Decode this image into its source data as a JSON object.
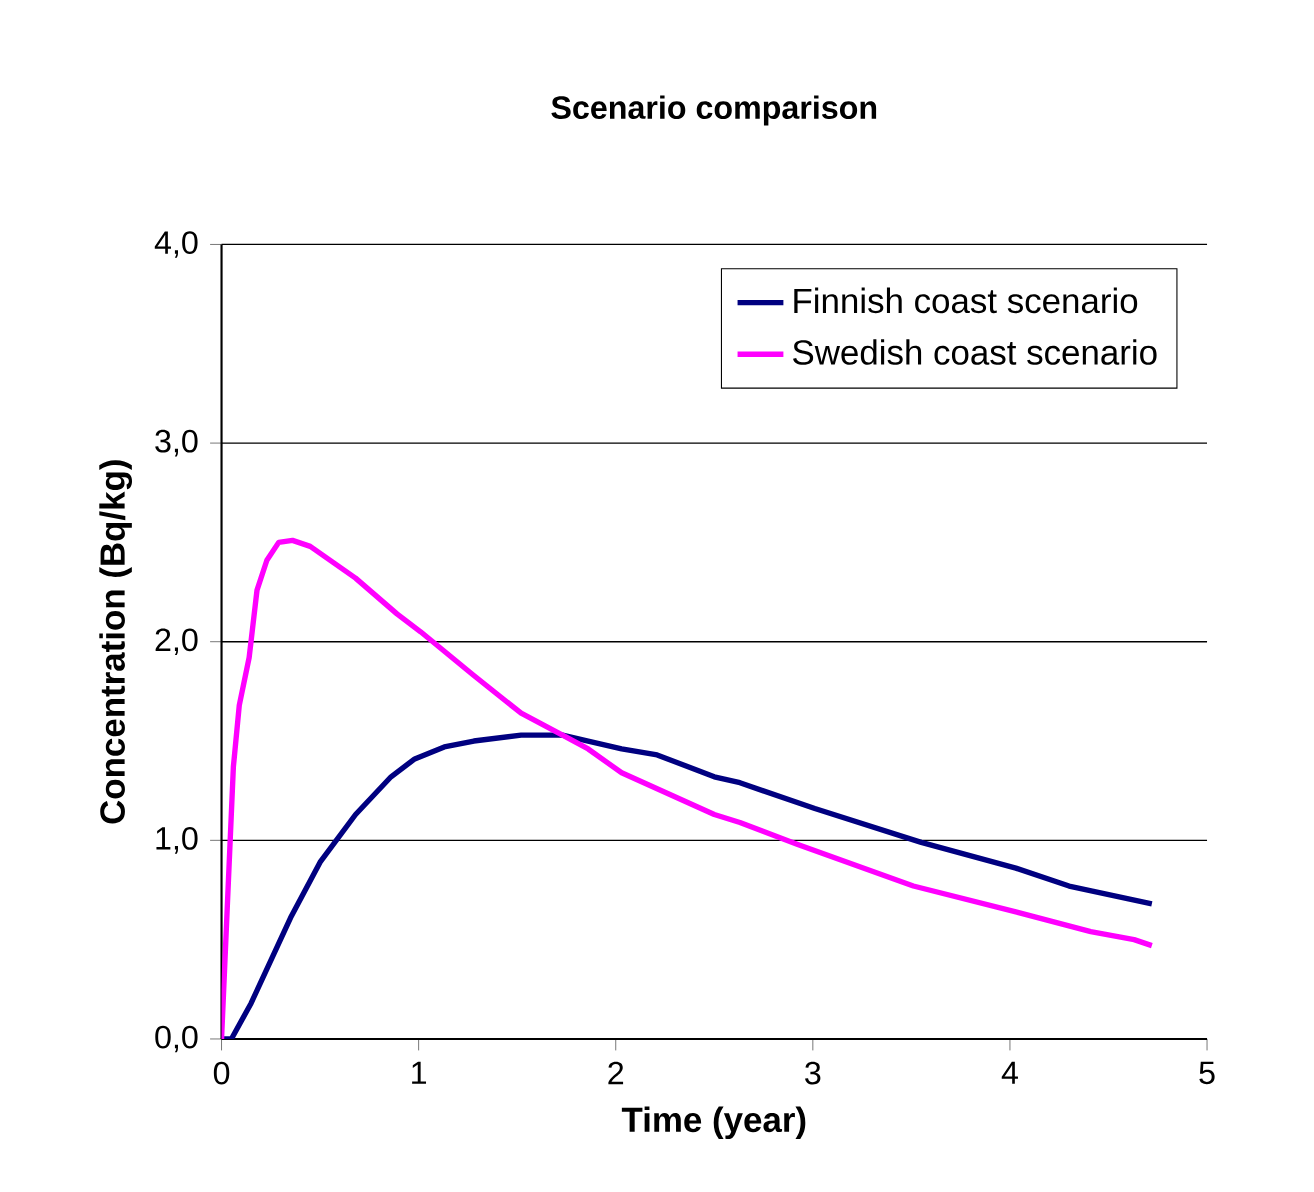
{
  "chart_data": {
    "type": "line",
    "title": "Scenario comparison",
    "xlabel": "Time (year)",
    "ylabel": "Concentration (Bq/kg)",
    "xlim": [
      0,
      5
    ],
    "xticks": [
      0,
      1,
      2,
      3,
      4,
      5
    ],
    "ylim": [
      0,
      4
    ],
    "yticks": [
      {
        "value": 0,
        "label": "0,0"
      },
      {
        "value": 1,
        "label": "1,0"
      },
      {
        "value": 2,
        "label": "2,0"
      },
      {
        "value": 3,
        "label": "3,0"
      },
      {
        "value": 4,
        "label": "4,0"
      }
    ],
    "grid": "y",
    "legend": "top right",
    "series": [
      {
        "name": "Finnish coast scenario",
        "color": "#000080",
        "x": [
          0.0,
          0.05,
          0.15,
          0.35,
          0.5,
          0.68,
          0.86,
          0.98,
          1.13,
          1.28,
          1.52,
          1.73,
          1.86,
          2.03,
          2.21,
          2.5,
          2.63,
          3.01,
          3.55,
          4.03,
          4.3,
          4.72
        ],
        "values": [
          0,
          0,
          0.18,
          0.61,
          0.89,
          1.13,
          1.32,
          1.41,
          1.47,
          1.5,
          1.53,
          1.53,
          1.5,
          1.46,
          1.43,
          1.32,
          1.29,
          1.16,
          0.99,
          0.86,
          0.77,
          0.68
        ]
      },
      {
        "name": "Swedish coast scenario",
        "color": "#ff00ff",
        "x": [
          0.0,
          0.06,
          0.09,
          0.14,
          0.18,
          0.23,
          0.29,
          0.36,
          0.45,
          0.68,
          0.89,
          1.01,
          1.28,
          1.52,
          1.73,
          1.86,
          2.03,
          2.5,
          2.63,
          2.92,
          3.51,
          4.03,
          4.41,
          4.63,
          4.72
        ],
        "values": [
          0,
          1.37,
          1.68,
          1.92,
          2.26,
          2.41,
          2.5,
          2.51,
          2.48,
          2.32,
          2.14,
          2.05,
          1.83,
          1.64,
          1.53,
          1.46,
          1.34,
          1.13,
          1.09,
          0.98,
          0.77,
          0.64,
          0.54,
          0.5,
          0.47
        ]
      }
    ]
  }
}
